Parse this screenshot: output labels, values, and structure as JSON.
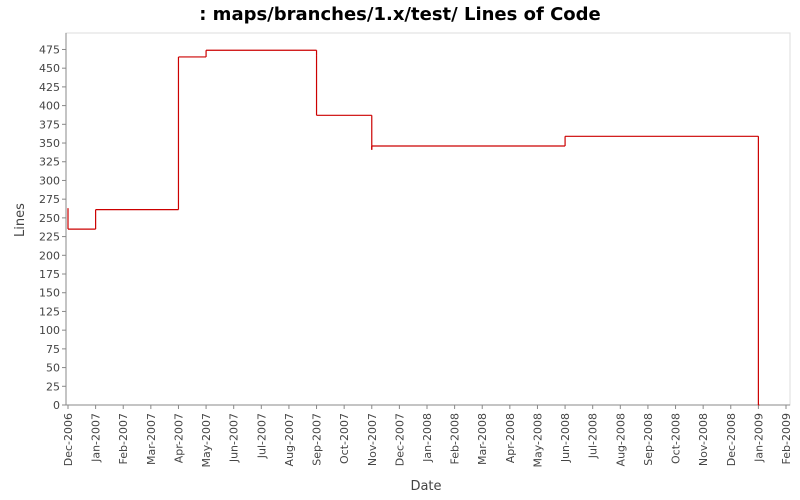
{
  "chart_data": {
    "type": "step-line",
    "title": ": maps/branches/1.x/test/ Lines of Code",
    "x_label": "Date",
    "y_label": "Lines",
    "x": [
      "2006-12",
      "2006-12",
      "2007-01",
      "2007-04",
      "2007-05",
      "2007-09",
      "2007-09",
      "2007-11",
      "2007-11",
      "2008-06",
      "2009-01"
    ],
    "series": [
      {
        "name": "Lines",
        "color": "#cc0000",
        "values": [
          263,
          235,
          261,
          465,
          474,
          467,
          387,
          341,
          346,
          359,
          0
        ]
      }
    ],
    "xlim": [
      "2006-12",
      "2009-02"
    ],
    "xticks": [
      {
        "value": "2006-12",
        "label": "Dec-2006"
      },
      {
        "value": "2007-01",
        "label": "Jan-2007"
      },
      {
        "value": "2007-02",
        "label": "Feb-2007"
      },
      {
        "value": "2007-03",
        "label": "Mar-2007"
      },
      {
        "value": "2007-04",
        "label": "Apr-2007"
      },
      {
        "value": "2007-05",
        "label": "May-2007"
      },
      {
        "value": "2007-06",
        "label": "Jun-2007"
      },
      {
        "value": "2007-07",
        "label": "Jul-2007"
      },
      {
        "value": "2007-08",
        "label": "Aug-2007"
      },
      {
        "value": "2007-09",
        "label": "Sep-2007"
      },
      {
        "value": "2007-10",
        "label": "Oct-2007"
      },
      {
        "value": "2007-11",
        "label": "Nov-2007"
      },
      {
        "value": "2007-12",
        "label": "Dec-2007"
      },
      {
        "value": "2008-01",
        "label": "Jan-2008"
      },
      {
        "value": "2008-02",
        "label": "Feb-2008"
      },
      {
        "value": "2008-03",
        "label": "Mar-2008"
      },
      {
        "value": "2008-04",
        "label": "Apr-2008"
      },
      {
        "value": "2008-05",
        "label": "May-2008"
      },
      {
        "value": "2008-06",
        "label": "Jun-2008"
      },
      {
        "value": "2008-07",
        "label": "Jul-2008"
      },
      {
        "value": "2008-08",
        "label": "Aug-2008"
      },
      {
        "value": "2008-09",
        "label": "Sep-2008"
      },
      {
        "value": "2008-10",
        "label": "Oct-2008"
      },
      {
        "value": "2008-11",
        "label": "Nov-2008"
      },
      {
        "value": "2008-12",
        "label": "Dec-2008"
      },
      {
        "value": "2009-01",
        "label": "Jan-2009"
      },
      {
        "value": "2009-02",
        "label": "Feb-2009"
      }
    ],
    "ylim": [
      0,
      497
    ],
    "yticks": [
      0,
      25,
      50,
      75,
      100,
      125,
      150,
      175,
      200,
      225,
      250,
      275,
      300,
      325,
      350,
      375,
      400,
      425,
      450,
      475
    ],
    "grid": false
  }
}
